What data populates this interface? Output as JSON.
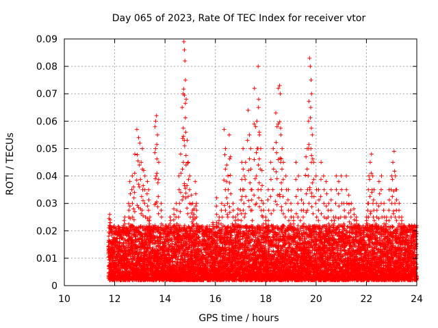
{
  "chart_data": {
    "type": "scatter",
    "title": "Day 065 of 2023, Rate Of TEC Index for receiver vtor",
    "xlabel": "GPS time / hours",
    "ylabel": "ROTI / TECUs",
    "xlim": [
      10,
      24
    ],
    "ylim": [
      0,
      0.09
    ],
    "x_ticks": [
      10,
      12,
      14,
      16,
      18,
      20,
      22,
      24
    ],
    "y_ticks": [
      0,
      0.01,
      0.02,
      0.03,
      0.04,
      0.05,
      0.06,
      0.07,
      0.08,
      0.09
    ],
    "x_tick_labels": [
      "10",
      "12",
      "14",
      "16",
      "18",
      "20",
      "22",
      "24"
    ],
    "y_tick_labels": [
      "0",
      "0.01",
      "0.02",
      "0.03",
      "0.04",
      "0.05",
      "0.06",
      "0.07",
      "0.08",
      "0.09"
    ],
    "grid": true,
    "marker": "+",
    "color": "#ff0000",
    "series": [
      {
        "points": [
          [
            11.8,
            0.026
          ],
          [
            11.82,
            0.024
          ],
          [
            11.85,
            0.021
          ],
          [
            11.9,
            0.016
          ],
          [
            11.95,
            0.012
          ],
          [
            12.05,
            0.017
          ],
          [
            12.15,
            0.014
          ],
          [
            12.25,
            0.02
          ],
          [
            12.4,
            0.025
          ],
          [
            12.55,
            0.03
          ],
          [
            12.6,
            0.038
          ],
          [
            12.7,
            0.04
          ],
          [
            12.75,
            0.036
          ],
          [
            12.8,
            0.048
          ],
          [
            12.88,
            0.057
          ],
          [
            12.95,
            0.054
          ],
          [
            13.0,
            0.052
          ],
          [
            13.05,
            0.045
          ],
          [
            13.1,
            0.05
          ],
          [
            13.15,
            0.042
          ],
          [
            13.2,
            0.04
          ],
          [
            13.3,
            0.038
          ],
          [
            13.35,
            0.035
          ],
          [
            13.4,
            0.025
          ],
          [
            13.5,
            0.02
          ],
          [
            13.6,
            0.058
          ],
          [
            13.63,
            0.06
          ],
          [
            13.66,
            0.062
          ],
          [
            13.7,
            0.055
          ],
          [
            13.75,
            0.045
          ],
          [
            13.85,
            0.03
          ],
          [
            14.0,
            0.02
          ],
          [
            14.2,
            0.025
          ],
          [
            14.35,
            0.028
          ],
          [
            14.45,
            0.03
          ],
          [
            14.55,
            0.04
          ],
          [
            14.62,
            0.048
          ],
          [
            14.68,
            0.065
          ],
          [
            14.72,
            0.07
          ],
          [
            14.75,
            0.089
          ],
          [
            14.77,
            0.086
          ],
          [
            14.79,
            0.082
          ],
          [
            14.81,
            0.075
          ],
          [
            14.84,
            0.068
          ],
          [
            14.88,
            0.053
          ],
          [
            14.92,
            0.045
          ],
          [
            14.98,
            0.04
          ],
          [
            15.05,
            0.033
          ],
          [
            15.1,
            0.03
          ],
          [
            15.15,
            0.028
          ],
          [
            15.2,
            0.038
          ],
          [
            15.25,
            0.03
          ],
          [
            15.3,
            0.02
          ],
          [
            15.5,
            0.015
          ],
          [
            15.7,
            0.018
          ],
          [
            15.9,
            0.023
          ],
          [
            16.05,
            0.032
          ],
          [
            16.15,
            0.025
          ],
          [
            16.25,
            0.03
          ],
          [
            16.35,
            0.057
          ],
          [
            16.4,
            0.05
          ],
          [
            16.45,
            0.044
          ],
          [
            16.5,
            0.04
          ],
          [
            16.55,
            0.055
          ],
          [
            16.6,
            0.047
          ],
          [
            16.7,
            0.03
          ],
          [
            16.8,
            0.025
          ],
          [
            16.9,
            0.028
          ],
          [
            17.0,
            0.035
          ],
          [
            17.05,
            0.045
          ],
          [
            17.1,
            0.05
          ],
          [
            17.15,
            0.04
          ],
          [
            17.2,
            0.045
          ],
          [
            17.3,
            0.064
          ],
          [
            17.35,
            0.055
          ],
          [
            17.4,
            0.05
          ],
          [
            17.45,
            0.035
          ],
          [
            17.55,
            0.072
          ],
          [
            17.6,
            0.058
          ],
          [
            17.65,
            0.06
          ],
          [
            17.7,
            0.08
          ],
          [
            17.72,
            0.068
          ],
          [
            17.75,
            0.055
          ],
          [
            17.8,
            0.05
          ],
          [
            17.85,
            0.042
          ],
          [
            17.9,
            0.03
          ],
          [
            18.0,
            0.025
          ],
          [
            18.1,
            0.035
          ],
          [
            18.2,
            0.045
          ],
          [
            18.3,
            0.05
          ],
          [
            18.4,
            0.063
          ],
          [
            18.45,
            0.058
          ],
          [
            18.5,
            0.072
          ],
          [
            18.55,
            0.073
          ],
          [
            18.58,
            0.07
          ],
          [
            18.6,
            0.055
          ],
          [
            18.65,
            0.05
          ],
          [
            18.7,
            0.045
          ],
          [
            18.8,
            0.04
          ],
          [
            18.9,
            0.035
          ],
          [
            19.0,
            0.03
          ],
          [
            19.1,
            0.025
          ],
          [
            19.2,
            0.045
          ],
          [
            19.3,
            0.04
          ],
          [
            19.4,
            0.035
          ],
          [
            19.5,
            0.03
          ],
          [
            19.6,
            0.047
          ],
          [
            19.65,
            0.05
          ],
          [
            19.7,
            0.06
          ],
          [
            19.74,
            0.083
          ],
          [
            19.77,
            0.08
          ],
          [
            19.8,
            0.075
          ],
          [
            19.82,
            0.07
          ],
          [
            19.85,
            0.055
          ],
          [
            19.9,
            0.045
          ],
          [
            20.0,
            0.04
          ],
          [
            20.1,
            0.035
          ],
          [
            20.2,
            0.045
          ],
          [
            20.3,
            0.04
          ],
          [
            20.4,
            0.038
          ],
          [
            20.5,
            0.03
          ],
          [
            20.6,
            0.035
          ],
          [
            20.7,
            0.025
          ],
          [
            20.8,
            0.04
          ],
          [
            20.9,
            0.038
          ],
          [
            21.0,
            0.04
          ],
          [
            21.1,
            0.03
          ],
          [
            21.2,
            0.04
          ],
          [
            21.3,
            0.033
          ],
          [
            21.4,
            0.03
          ],
          [
            21.5,
            0.028
          ],
          [
            21.6,
            0.025
          ],
          [
            21.7,
            0.022
          ],
          [
            21.8,
            0.02
          ],
          [
            21.9,
            0.018
          ],
          [
            22.0,
            0.025
          ],
          [
            22.05,
            0.03
          ],
          [
            22.1,
            0.04
          ],
          [
            22.15,
            0.045
          ],
          [
            22.2,
            0.048
          ],
          [
            22.25,
            0.04
          ],
          [
            22.3,
            0.035
          ],
          [
            22.4,
            0.03
          ],
          [
            22.5,
            0.038
          ],
          [
            22.6,
            0.04
          ],
          [
            22.7,
            0.03
          ],
          [
            22.8,
            0.025
          ],
          [
            22.9,
            0.035
          ],
          [
            23.0,
            0.04
          ],
          [
            23.05,
            0.045
          ],
          [
            23.1,
            0.049
          ],
          [
            23.15,
            0.04
          ],
          [
            23.2,
            0.035
          ],
          [
            23.3,
            0.03
          ],
          [
            23.4,
            0.025
          ],
          [
            23.5,
            0.022
          ],
          [
            23.6,
            0.02
          ],
          [
            23.7,
            0.018
          ],
          [
            23.8,
            0.022
          ],
          [
            23.9,
            0.02
          ],
          [
            23.95,
            0.018
          ]
        ]
      }
    ],
    "dense_band": {
      "note": "",
      "x_start": 11.75,
      "x_end": 24.0,
      "typical_min": 0.002,
      "typical_max": 0.022
    }
  }
}
